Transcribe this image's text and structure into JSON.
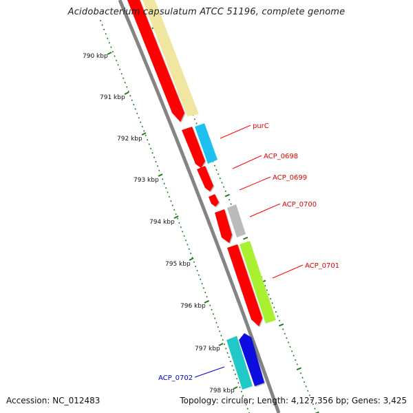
{
  "title": "Acidobacterium capsulatum ATCC 51196, complete genome",
  "accession_text": "Accession: NC_012483",
  "summary_text": "Topology: circular; Length: 4,127,356 bp; Genes: 3,425",
  "ticks": [
    {
      "label": "790 kbp"
    },
    {
      "label": "791 kbp"
    },
    {
      "label": "792 kbp"
    },
    {
      "label": "793 kbp"
    },
    {
      "label": "794 kbp"
    },
    {
      "label": "795 kbp"
    },
    {
      "label": "796 kbp"
    },
    {
      "label": "797 kbp"
    },
    {
      "label": "798 kbp"
    }
  ],
  "genes": [
    {
      "label": "purC",
      "color": "#ff0000"
    },
    {
      "label": "ACP_0698",
      "color": "#ff0000"
    },
    {
      "label": "ACP_0699",
      "color": "#ff0000"
    },
    {
      "label": "ACP_0700",
      "color": "#ff0000"
    },
    {
      "label": "ACP_0701",
      "color": "#ff0000"
    },
    {
      "label": "ACP_0702",
      "color": "#0000cc"
    }
  ],
  "colors": {
    "cds": "#ff0000",
    "backbone": "#888888",
    "tick": "#1e7a1e",
    "feature_yellow": "#f0e6a0",
    "feature_cyan": "#1ec0f0",
    "feature_grey": "#bbbbbb",
    "feature_lime": "#a8f030",
    "feature_teal": "#20c8c8",
    "feature_blue": "#1010e0"
  }
}
